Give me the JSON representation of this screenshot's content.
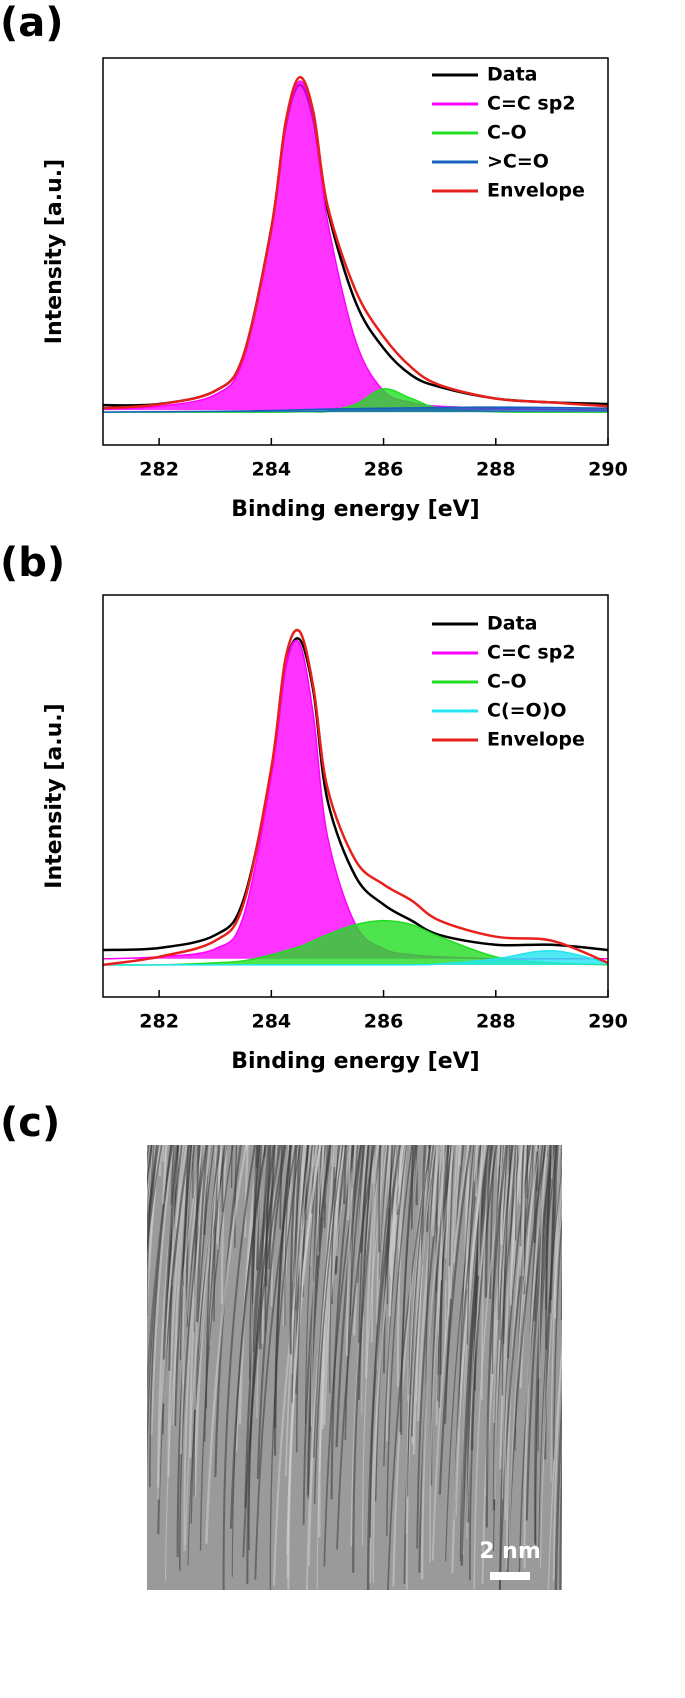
{
  "chart_data": [
    {
      "type": "line",
      "panel": "(a)",
      "x_label": "Binding energy [eV]",
      "y_label": "Intensity [a.u.]",
      "xlim": [
        281,
        290
      ],
      "xticks": [
        282,
        284,
        286,
        288,
        290
      ],
      "ylim": [
        0,
        100
      ],
      "x": [
        281,
        282,
        283,
        283.5,
        284,
        284.25,
        284.5,
        284.75,
        285,
        285.5,
        286,
        286.5,
        287,
        288,
        289,
        290
      ],
      "series": [
        {
          "name": "Data",
          "color": "#000000",
          "filled": false,
          "values": [
            10.3,
            10.6,
            14,
            23,
            56,
            82,
            93,
            84,
            61,
            37,
            25,
            18,
            15,
            12,
            11,
            10.6
          ]
        },
        {
          "name": "C=C sp2",
          "color": "#ff00ff",
          "filled": true,
          "values": [
            9.2,
            10,
            13,
            22,
            55,
            82,
            94,
            85,
            58,
            27,
            14,
            11,
            10,
            9.5,
            9.2,
            9
          ]
        },
        {
          "name": "C–O",
          "color": "#22dd22",
          "filled": true,
          "values": [
            8.5,
            8.5,
            8.5,
            8.5,
            8.5,
            8.5,
            8.6,
            8.6,
            8.7,
            10.5,
            14.5,
            12,
            9.5,
            8.6,
            8.5,
            8.5
          ]
        },
        {
          "name": ">C=O",
          "color": "#1560bd",
          "filled": true,
          "values": [
            8.5,
            8.6,
            8.7,
            8.8,
            8.9,
            9,
            9.1,
            9.2,
            9.3,
            9.4,
            9.5,
            9.6,
            9.7,
            9.8,
            9.7,
            9.5
          ]
        },
        {
          "name": "Envelope",
          "color": "#e8201c",
          "filled": false,
          "values": [
            9.5,
            10.5,
            14,
            23,
            56,
            83,
            95,
            86,
            62,
            40,
            28,
            20,
            15.5,
            12,
            11,
            10
          ]
        }
      ]
    },
    {
      "type": "line",
      "panel": "(b)",
      "x_label": "Binding energy [eV]",
      "y_label": "Intensity [a.u.]",
      "xlim": [
        281,
        290
      ],
      "xticks": [
        282,
        284,
        286,
        288,
        290
      ],
      "ylim": [
        0,
        100
      ],
      "x": [
        281,
        282,
        283,
        283.5,
        284,
        284.25,
        284.5,
        284.75,
        285,
        285.5,
        286,
        286.5,
        287,
        288,
        289,
        290
      ],
      "series": [
        {
          "name": "Data",
          "color": "#000000",
          "filled": false,
          "values": [
            11.7,
            12.2,
            15.4,
            24,
            56,
            82,
            89,
            76,
            49,
            30,
            23,
            19,
            15.4,
            13,
            13,
            11.7
          ]
        },
        {
          "name": "C=C sp2",
          "color": "#ff00ff",
          "filled": true,
          "values": [
            9.5,
            10,
            12,
            20,
            55,
            82,
            88,
            70,
            40,
            18,
            12,
            10.5,
            10,
            9.5,
            9.5,
            9.5
          ]
        },
        {
          "name": "C–O",
          "color": "#22dd22",
          "filled": true,
          "values": [
            8,
            8,
            8.5,
            9,
            10.5,
            11.5,
            12.5,
            14,
            15.5,
            18,
            19,
            18,
            15,
            10,
            8.5,
            8
          ]
        },
        {
          "name": "C(=O)O",
          "color": "#22e5f0",
          "filled": true,
          "values": [
            8,
            8,
            8,
            8,
            8,
            8,
            8,
            8,
            8,
            8,
            8,
            8,
            8.2,
            9.5,
            11.5,
            8.5
          ]
        },
        {
          "name": "Envelope",
          "color": "#e8201c",
          "filled": false,
          "values": [
            8,
            10,
            14,
            23,
            57,
            84,
            91,
            77,
            52,
            34,
            28,
            24,
            19,
            15,
            14,
            8.5
          ]
        }
      ]
    }
  ],
  "figure_c": {
    "panel": "(c)",
    "scale_bar": "2 nm"
  }
}
